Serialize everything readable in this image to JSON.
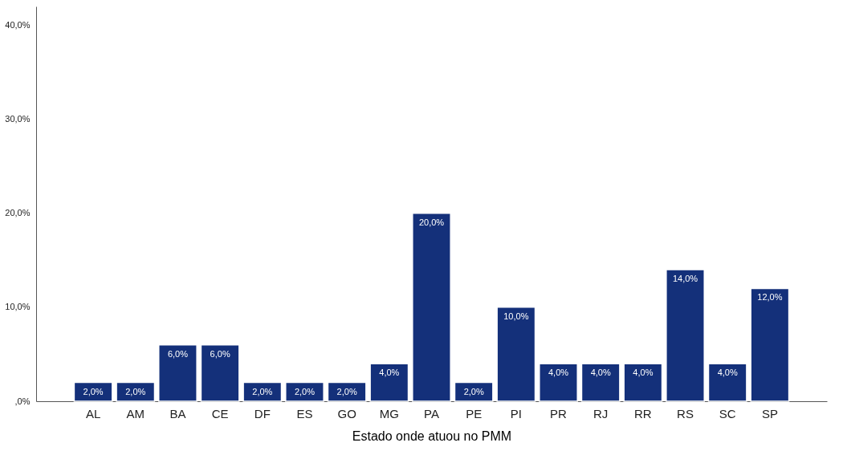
{
  "chart_data": {
    "type": "bar",
    "xlabel": "Estado onde atuou no PMM",
    "categories": [
      "AL",
      "AM",
      "BA",
      "CE",
      "DF",
      "ES",
      "GO",
      "MG",
      "PA",
      "PE",
      "PI",
      "PR",
      "RJ",
      "RR",
      "RS",
      "SC",
      "SP"
    ],
    "values": [
      2,
      2,
      6,
      6,
      2,
      2,
      2,
      4,
      20,
      2,
      10,
      4,
      4,
      4,
      14,
      4,
      12
    ],
    "value_labels": [
      "2,0%",
      "2,0%",
      "6,0%",
      "6,0%",
      "2,0%",
      "2,0%",
      "2,0%",
      "4,0%",
      "20,0%",
      "2,0%",
      "10,0%",
      "4,0%",
      "4,0%",
      "4,0%",
      "14,0%",
      "4,0%",
      "12,0%"
    ],
    "color": "#14307a",
    "ylim": [
      0,
      42
    ],
    "yticks": [
      {
        "value": 0,
        "label": ",0%"
      },
      {
        "value": 10,
        "label": "10,0%"
      },
      {
        "value": 20,
        "label": "20,0%"
      },
      {
        "value": 30,
        "label": "30,0%"
      },
      {
        "value": 40,
        "label": "40,0%"
      }
    ],
    "grid": false
  }
}
